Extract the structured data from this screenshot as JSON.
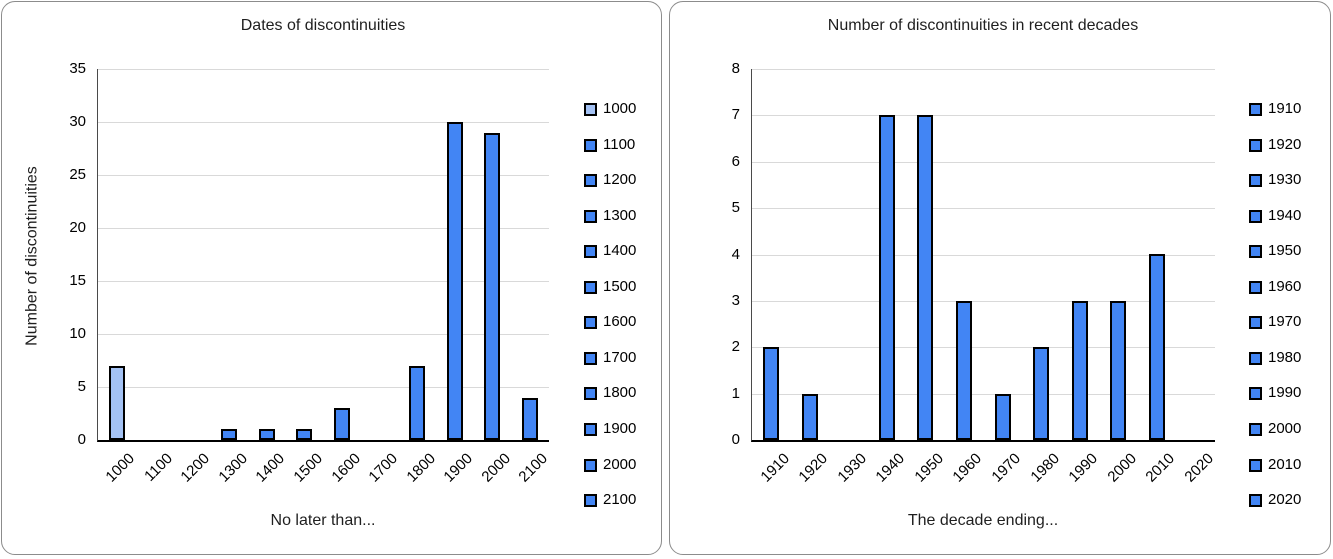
{
  "colors": {
    "bar_default": "#4285f4",
    "bar_light": "#a4c2f4",
    "bar_border": "#000000",
    "gridline": "#d9d9d9",
    "axis_baseline": "#000000",
    "card_border": "#8c8c8c",
    "text": "#000000"
  },
  "chart_data": [
    {
      "type": "bar",
      "title": "Dates of discontinuities",
      "xlabel": "No later than...",
      "ylabel": "Number of discontinuities",
      "categories": [
        "1000",
        "1100",
        "1200",
        "1300",
        "1400",
        "1500",
        "1600",
        "1700",
        "1800",
        "1900",
        "2000",
        "2100"
      ],
      "values": [
        7,
        0,
        0,
        1,
        1,
        1,
        3,
        0,
        7,
        30,
        29,
        4
      ],
      "ylim": [
        0,
        35
      ],
      "ytick_step": 5,
      "grid": true,
      "legend_position": "right",
      "legend_entries": [
        "1000",
        "1100",
        "1200",
        "1300",
        "1400",
        "1500",
        "1600",
        "1700",
        "1800",
        "1900",
        "2000",
        "2100"
      ],
      "bar_color": "#4285f4",
      "bar_colors": [
        "#a4c2f4",
        "#4285f4",
        "#4285f4",
        "#4285f4",
        "#4285f4",
        "#4285f4",
        "#4285f4",
        "#4285f4",
        "#4285f4",
        "#4285f4",
        "#4285f4",
        "#4285f4"
      ]
    },
    {
      "type": "bar",
      "title": "Number of discontinuities in recent decades",
      "xlabel": "The decade ending...",
      "ylabel": "",
      "categories": [
        "1910",
        "1920",
        "1930",
        "1940",
        "1950",
        "1960",
        "1970",
        "1980",
        "1990",
        "2000",
        "2010",
        "2020"
      ],
      "values": [
        2,
        1,
        0,
        7,
        7,
        3,
        1,
        2,
        3,
        3,
        4,
        0
      ],
      "ylim": [
        0,
        8
      ],
      "ytick_step": 1,
      "grid": true,
      "legend_position": "right",
      "legend_entries": [
        "1910",
        "1920",
        "1930",
        "1940",
        "1950",
        "1960",
        "1970",
        "1980",
        "1990",
        "2000",
        "2010",
        "2020"
      ],
      "bar_color": "#4285f4"
    }
  ]
}
